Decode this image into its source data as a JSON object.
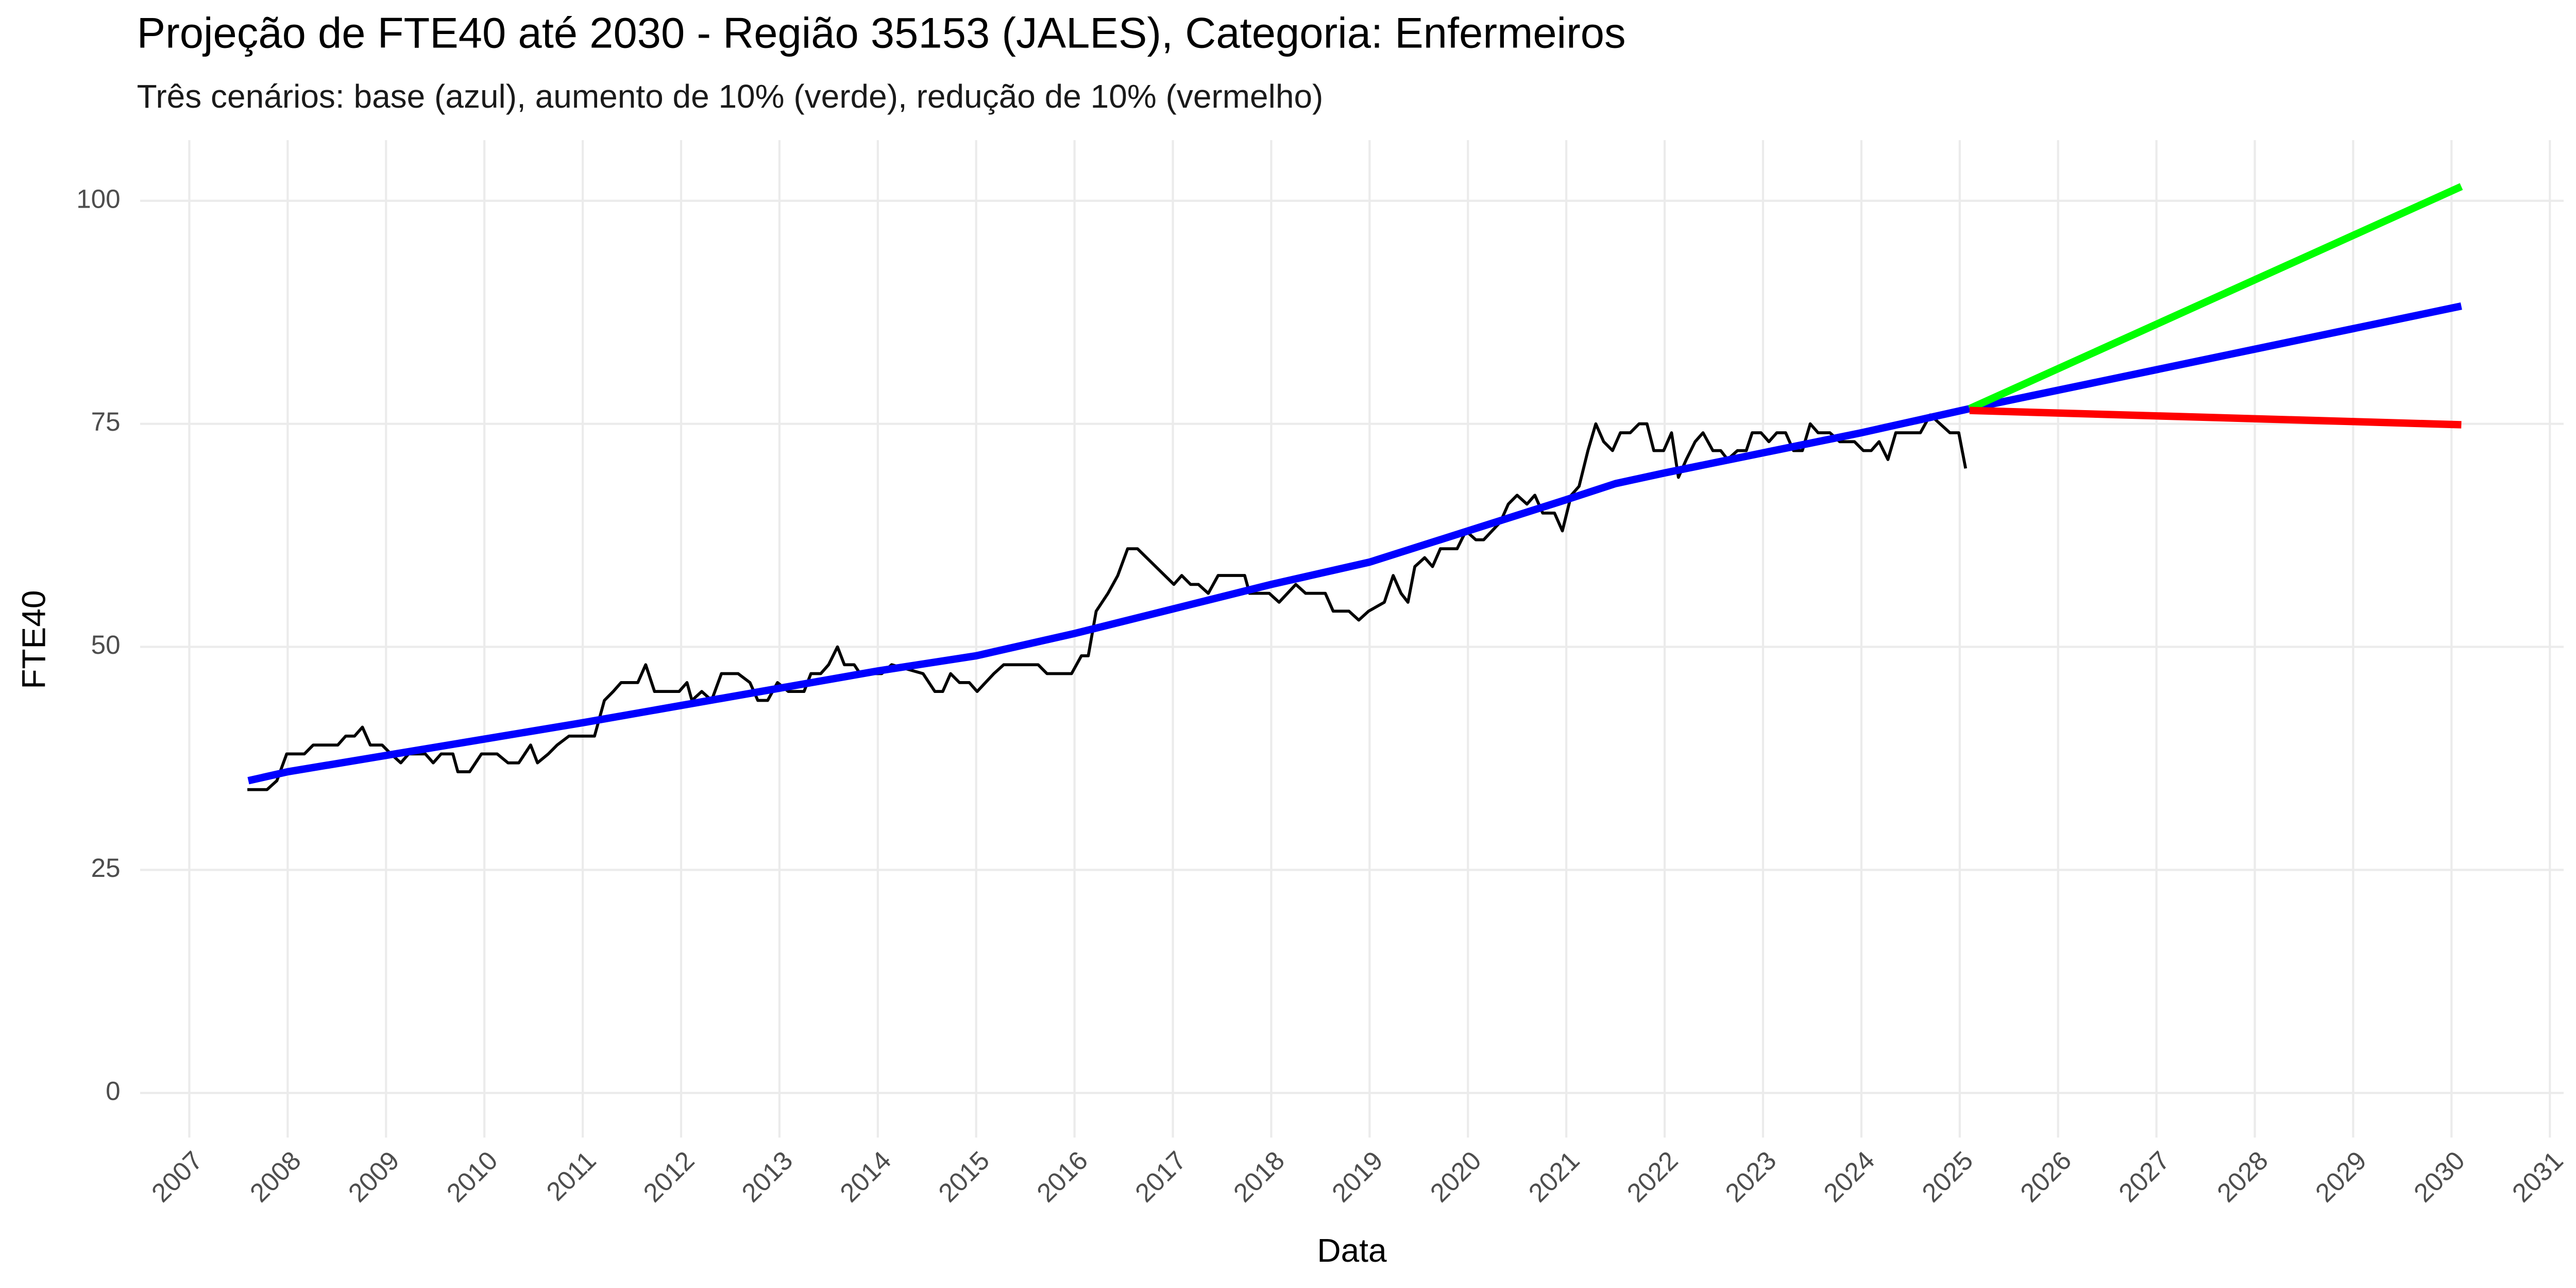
{
  "chart_data": {
    "type": "line",
    "title": "Projeção de FTE40 até 2030 - Região 35153 (JALES), Categoria: Enfermeiros",
    "subtitle": "Três cenários: base (azul), aumento de 10% (verde), redução de 10% (vermelho)",
    "x_label": "Data",
    "y_label": "FTE40",
    "xlim": [
      2006.5,
      2031.14
    ],
    "xticks": [
      2007,
      2008,
      2009,
      2010,
      2011,
      2012,
      2013,
      2014,
      2015,
      2016,
      2017,
      2018,
      2019,
      2020,
      2021,
      2022,
      2023,
      2024,
      2025,
      2026,
      2027,
      2028,
      2029,
      2030,
      2031
    ],
    "ylim": [
      -5,
      106.8
    ],
    "yticks": [
      0,
      25,
      50,
      75,
      100
    ],
    "grid": true,
    "series": [
      {
        "color": "#000000",
        "x": [
          2007.59,
          2007.79,
          2007.89,
          2007.99,
          2008.17,
          2008.26,
          2008.51,
          2008.59,
          2008.68,
          2008.76,
          2008.84,
          2008.96,
          2009.05,
          2009.15,
          2009.23,
          2009.4,
          2009.48,
          2009.56,
          2009.68,
          2009.73,
          2009.85,
          2009.97,
          2010.13,
          2010.24,
          2010.35,
          2010.47,
          2010.54,
          2010.65,
          2010.74,
          2010.86,
          2011.12,
          2011.22,
          2011.31,
          2011.39,
          2011.56,
          2011.64,
          2011.73,
          2011.98,
          2012.06,
          2012.11,
          2012.21,
          2012.31,
          2012.41,
          2012.58,
          2012.7,
          2012.78,
          2012.88,
          2012.98,
          2013.09,
          2013.25,
          2013.32,
          2013.42,
          2013.5,
          2013.59,
          2013.66,
          2013.76,
          2013.82,
          2014.04,
          2014.14,
          2014.46,
          2014.58,
          2014.66,
          2014.74,
          2014.83,
          2014.93,
          2015.01,
          2015.18,
          2015.28,
          2015.63,
          2015.72,
          2015.97,
          2016.07,
          2016.14,
          2016.22,
          2016.34,
          2016.44,
          2016.54,
          2016.64,
          2017.01,
          2017.09,
          2017.18,
          2017.26,
          2017.36,
          2017.46,
          2017.73,
          2017.78,
          2017.98,
          2018.08,
          2018.25,
          2018.35,
          2018.55,
          2018.63,
          2018.79,
          2018.89,
          2018.99,
          2019.15,
          2019.24,
          2019.32,
          2019.39,
          2019.46,
          2019.56,
          2019.64,
          2019.72,
          2019.89,
          2019.98,
          2020.08,
          2020.16,
          2020.33,
          2020.41,
          2020.5,
          2020.6,
          2020.68,
          2020.76,
          2020.88,
          2020.96,
          2021.05,
          2021.13,
          2021.22,
          2021.3,
          2021.38,
          2021.47,
          2021.55,
          2021.65,
          2021.74,
          2021.82,
          2021.89,
          2021.99,
          2022.07,
          2022.14,
          2022.22,
          2022.31,
          2022.39,
          2022.49,
          2022.57,
          2022.64,
          2022.74,
          2022.83,
          2022.89,
          2022.98,
          2023.06,
          2023.14,
          2023.23,
          2023.31,
          2023.4,
          2023.48,
          2023.56,
          2023.68,
          2023.78,
          2023.93,
          2024.02,
          2024.1,
          2024.18,
          2024.27,
          2024.35,
          2024.6,
          2024.7,
          2024.8,
          2024.9,
          2024.99,
          2025.06
        ],
        "values": [
          34,
          34,
          35,
          38,
          38,
          39,
          39,
          40,
          40,
          41,
          39,
          39,
          38,
          37,
          38,
          38,
          37,
          38,
          38,
          36,
          36,
          38,
          38,
          37,
          37,
          39,
          37,
          38,
          39,
          40,
          40,
          44,
          45,
          46,
          46,
          48,
          45,
          45,
          46,
          44,
          45,
          44,
          47,
          47,
          46,
          44,
          44,
          46,
          45,
          45,
          47,
          47,
          48,
          50,
          48,
          48,
          47,
          47,
          48,
          47,
          45,
          45,
          47,
          46,
          46,
          45,
          47,
          48,
          48,
          47,
          47,
          49,
          49,
          54,
          56,
          58,
          61,
          61,
          57,
          58,
          57,
          57,
          56,
          58,
          58,
          56,
          56,
          55,
          57,
          56,
          56,
          54,
          54,
          53,
          54,
          55,
          58,
          56,
          55,
          59,
          60,
          59,
          61,
          61,
          63,
          62,
          62,
          64,
          66,
          67,
          66,
          67,
          65,
          65,
          63,
          67,
          68,
          72,
          75,
          73,
          72,
          74,
          74,
          75,
          75,
          72,
          72,
          74,
          69,
          71,
          73,
          74,
          72,
          72,
          71,
          72,
          72,
          74,
          74,
          73,
          74,
          74,
          72,
          72,
          75,
          74,
          74,
          73,
          73,
          72,
          72,
          73,
          71,
          74,
          74,
          76,
          75,
          74,
          74,
          70
        ]
      },
      {
        "color": "#0000ff",
        "x": [
          2007.6,
          2008,
          2011,
          2014,
          2015,
          2016,
          2018,
          2019,
          2020,
          2021,
          2021.5,
          2022,
          2024,
          2025.1,
          2030.1
        ],
        "values": [
          35,
          36,
          41.5,
          47.3,
          49,
          51.5,
          57,
          59.5,
          63,
          66.5,
          68.3,
          69.5,
          74,
          76.7,
          88.2
        ]
      },
      {
        "color": "#00ff00",
        "x": [
          2025.1,
          2030.1
        ],
        "values": [
          76.7,
          101.6
        ]
      },
      {
        "color": "#ff0000",
        "x": [
          2025.1,
          2030.1
        ],
        "values": [
          76.5,
          74.9
        ]
      }
    ]
  }
}
